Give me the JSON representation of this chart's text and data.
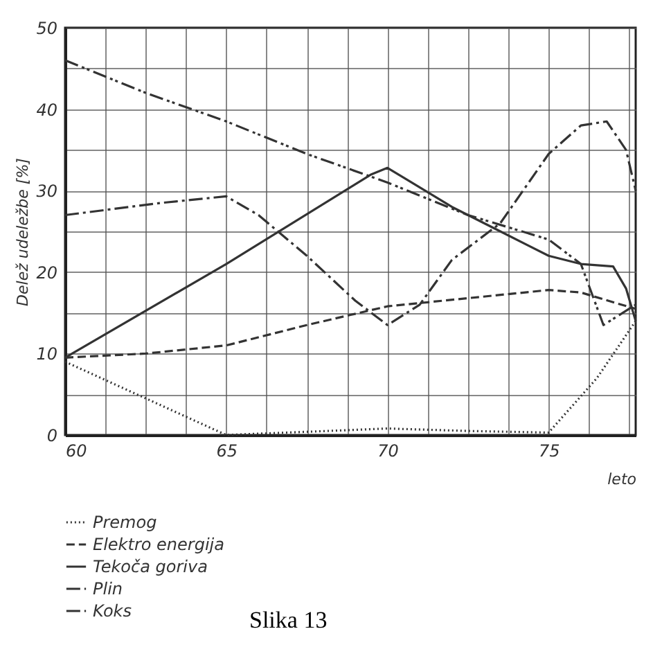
{
  "chart_data": {
    "type": "line",
    "xlabel": "leto",
    "ylabel": "Delež udeležbe [%]",
    "annotations": [
      "Slika 13"
    ],
    "xlim": [
      60,
      77.7
    ],
    "ylim": [
      0,
      50
    ],
    "xticks": [
      60,
      {
        "value": 61.25,
        "label": null
      },
      {
        "value": 62.5,
        "label": null
      },
      {
        "value": 63.75,
        "label": null
      },
      65,
      {
        "value": 66.25,
        "label": null
      },
      {
        "value": 67.5,
        "label": null
      },
      {
        "value": 68.75,
        "label": null
      },
      70,
      {
        "value": 71.25,
        "label": null
      },
      {
        "value": 72.5,
        "label": null
      },
      {
        "value": 73.75,
        "label": null
      },
      75,
      {
        "value": 76.25,
        "label": null
      },
      {
        "value": 77.5,
        "label": null
      }
    ],
    "yticks": [
      0,
      {
        "value": 5,
        "label": null
      },
      10,
      {
        "value": 15,
        "label": null
      },
      20,
      {
        "value": 25,
        "label": null
      },
      30,
      {
        "value": 35,
        "label": null
      },
      40,
      {
        "value": 45,
        "label": null
      },
      50
    ],
    "grid": true,
    "legend": "bottom",
    "marker": "none",
    "series": [
      {
        "name": "Premog",
        "color": "#333333",
        "line_style": "dotted",
        "x": [
          60,
          62.5,
          65,
          67.5,
          70,
          72.5,
          75,
          76.5,
          77.7
        ],
        "values": [
          9,
          4.5,
          0,
          0.4,
          0.8,
          0.5,
          0.3,
          7,
          14
        ]
      },
      {
        "name": "Elektro energija",
        "color": "#333333",
        "line_style": "dashed",
        "x": [
          60,
          62.5,
          65,
          67.5,
          70,
          72.5,
          75,
          76,
          77,
          77.7
        ],
        "values": [
          9.5,
          10,
          11,
          13.5,
          15.8,
          16.8,
          17.8,
          17.5,
          16.3,
          15.5
        ]
      },
      {
        "name": "Tekoča goriva",
        "color": "#333333",
        "line_style": "solid",
        "x": [
          60,
          65,
          69.5,
          70,
          72,
          73.5,
          75,
          76,
          77,
          77.4,
          77.7
        ],
        "values": [
          9.5,
          21,
          32,
          32.8,
          28,
          25,
          22,
          21,
          20.7,
          18,
          14
        ]
      },
      {
        "name": "Plin",
        "color": "#333333",
        "line_style": "dashdot",
        "x": [
          60,
          63,
          65,
          66,
          67.5,
          69,
          70,
          71,
          72,
          73.5,
          75,
          76,
          76.8,
          77.4,
          77.7
        ],
        "values": [
          27,
          28.5,
          29.3,
          27,
          22,
          16.5,
          13.5,
          16,
          21.5,
          26,
          34.5,
          38,
          38.5,
          35,
          30
        ]
      },
      {
        "name": "Koks",
        "color": "#333333",
        "line_style": "dashdotdot",
        "x": [
          60,
          62.5,
          65,
          67.5,
          70,
          72.5,
          75,
          76,
          76.7,
          77.7
        ],
        "values": [
          46,
          42,
          38.5,
          34.5,
          31,
          27,
          24,
          21,
          13.5,
          16
        ]
      }
    ]
  }
}
